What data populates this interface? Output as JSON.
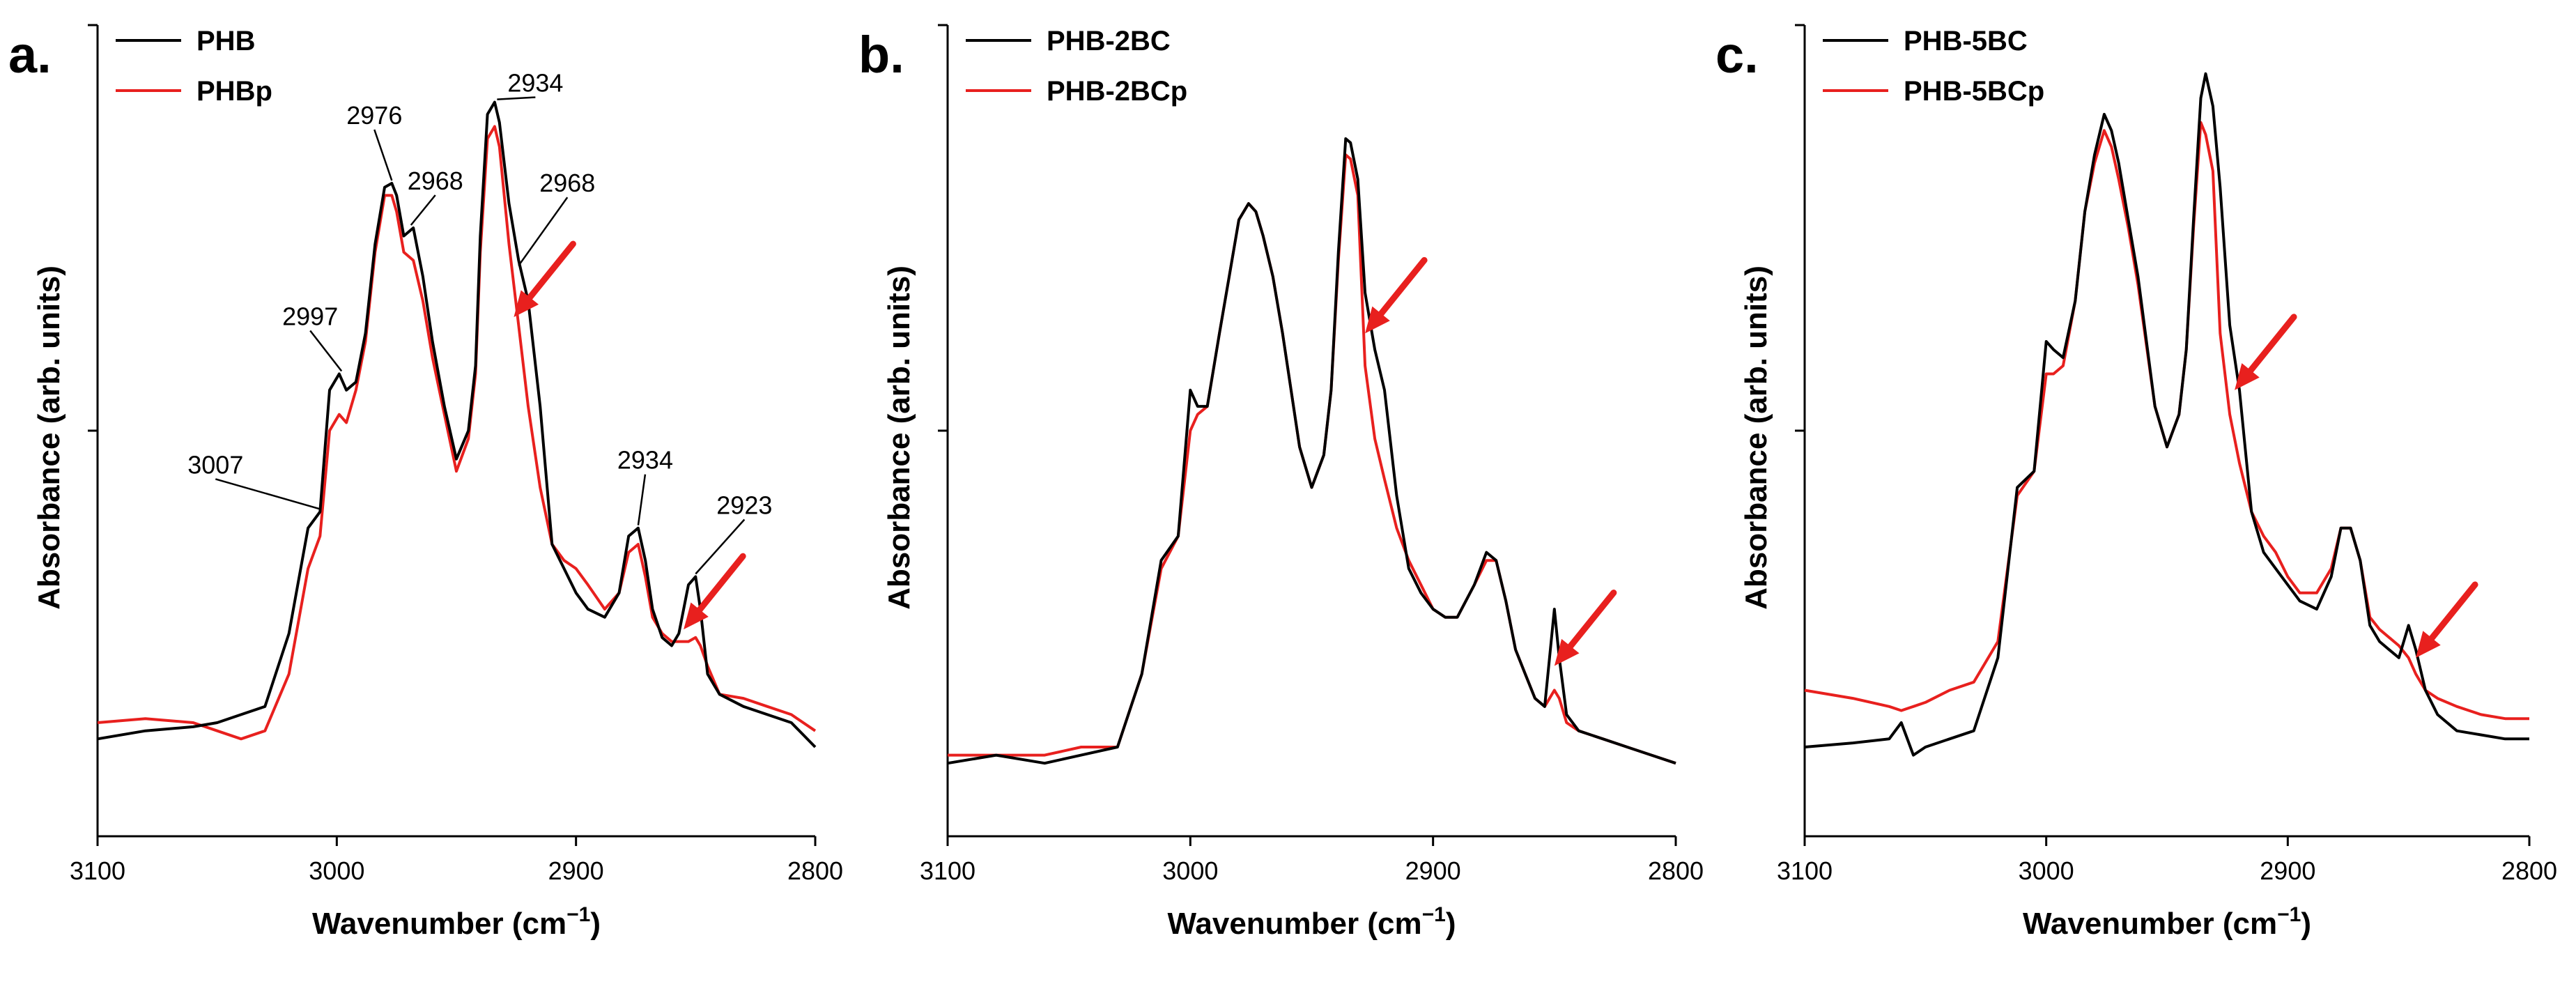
{
  "chart_data": [
    {
      "type": "line",
      "panel_label": "a.",
      "xlabel": "Wavenumber (cm",
      "xlabel_sup": "−1",
      "xlabel_close": ")",
      "ylabel": "Absorbance (arb. units)",
      "xlim": [
        3100,
        2800
      ],
      "ylim": [
        0,
        1
      ],
      "xticks": [
        3100,
        3000,
        2900,
        2800
      ],
      "xtick_labels": [
        "3100",
        "3000",
        "2900",
        "2800"
      ],
      "yticks": [
        0.5,
        1.0
      ],
      "legend_position": "top-left",
      "series": [
        {
          "name": "PHB",
          "color": "#000000",
          "x": [
            3100,
            3080,
            3060,
            3050,
            3040,
            3030,
            3020,
            3012,
            3007,
            3003,
            2999,
            2996,
            2992,
            2988,
            2984,
            2980,
            2977,
            2975,
            2972,
            2968,
            2964,
            2960,
            2955,
            2950,
            2945,
            2942,
            2940,
            2937,
            2934,
            2932,
            2928,
            2924,
            2920,
            2915,
            2910,
            2905,
            2900,
            2895,
            2888,
            2882,
            2878,
            2874,
            2871,
            2868,
            2864,
            2860,
            2857,
            2853,
            2850,
            2848,
            2845,
            2840,
            2830,
            2820,
            2810,
            2800
          ],
          "y": [
            0.12,
            0.13,
            0.135,
            0.14,
            0.15,
            0.16,
            0.25,
            0.38,
            0.4,
            0.55,
            0.57,
            0.55,
            0.56,
            0.62,
            0.73,
            0.8,
            0.805,
            0.79,
            0.74,
            0.75,
            0.69,
            0.61,
            0.53,
            0.465,
            0.5,
            0.58,
            0.74,
            0.89,
            0.905,
            0.88,
            0.78,
            0.71,
            0.66,
            0.53,
            0.36,
            0.33,
            0.3,
            0.28,
            0.27,
            0.3,
            0.37,
            0.38,
            0.34,
            0.28,
            0.245,
            0.235,
            0.25,
            0.31,
            0.32,
            0.28,
            0.2,
            0.175,
            0.16,
            0.15,
            0.14,
            0.11
          ]
        },
        {
          "name": "PHBp",
          "color": "#e8201e",
          "x": [
            3100,
            3080,
            3060,
            3050,
            3040,
            3030,
            3020,
            3012,
            3007,
            3003,
            2999,
            2996,
            2992,
            2988,
            2984,
            2980,
            2977,
            2975,
            2972,
            2968,
            2964,
            2960,
            2955,
            2950,
            2945,
            2942,
            2940,
            2937,
            2934,
            2932,
            2928,
            2924,
            2920,
            2915,
            2910,
            2905,
            2900,
            2895,
            2888,
            2882,
            2878,
            2874,
            2871,
            2868,
            2864,
            2860,
            2857,
            2853,
            2850,
            2848,
            2845,
            2840,
            2830,
            2820,
            2810,
            2800
          ],
          "y": [
            0.14,
            0.145,
            0.14,
            0.13,
            0.12,
            0.13,
            0.2,
            0.33,
            0.37,
            0.5,
            0.52,
            0.51,
            0.55,
            0.61,
            0.72,
            0.79,
            0.79,
            0.77,
            0.72,
            0.71,
            0.66,
            0.59,
            0.52,
            0.45,
            0.49,
            0.57,
            0.72,
            0.86,
            0.875,
            0.85,
            0.73,
            0.63,
            0.53,
            0.43,
            0.36,
            0.34,
            0.33,
            0.31,
            0.28,
            0.3,
            0.35,
            0.36,
            0.32,
            0.27,
            0.25,
            0.24,
            0.24,
            0.24,
            0.245,
            0.235,
            0.21,
            0.175,
            0.17,
            0.16,
            0.15,
            0.13
          ]
        }
      ],
      "annotations": [
        {
          "label": "3007",
          "x": 3007,
          "y": 0.4
        },
        {
          "label": "2997",
          "x": 2998,
          "y": 0.57
        },
        {
          "label": "2976",
          "x": 2977,
          "y": 0.805
        },
        {
          "label": "2968",
          "x": 2969,
          "y": 0.75
        },
        {
          "label": "2934",
          "x": 2933,
          "y": 0.905
        },
        {
          "label": "2968",
          "x": 2924,
          "y": 0.7
        },
        {
          "label": "2934",
          "x": 2874,
          "y": 0.38
        },
        {
          "label": "2923",
          "x": 2850,
          "y": 0.32
        }
      ],
      "arrows": [
        {
          "x": 2926,
          "y": 0.64
        },
        {
          "x": 2855,
          "y": 0.255
        }
      ]
    },
    {
      "type": "line",
      "panel_label": "b.",
      "xlabel": "Wavenumber (cm",
      "xlabel_sup": "−1",
      "xlabel_close": ")",
      "ylabel": "Absorbance (arb. units)",
      "xlim": [
        3100,
        2800
      ],
      "ylim": [
        0,
        1
      ],
      "xticks": [
        3100,
        3000,
        2900,
        2800
      ],
      "xtick_labels": [
        "3100",
        "3000",
        "2900",
        "2800"
      ],
      "yticks": [
        0.5,
        1.0
      ],
      "legend_position": "top-left",
      "series": [
        {
          "name": "PHB-2BC",
          "color": "#000000",
          "x": [
            3100,
            3080,
            3060,
            3045,
            3030,
            3020,
            3012,
            3005,
            3000,
            2997,
            2993,
            2988,
            2984,
            2980,
            2976,
            2973,
            2970,
            2966,
            2962,
            2955,
            2950,
            2945,
            2942,
            2939,
            2936,
            2934,
            2931,
            2928,
            2924,
            2920,
            2915,
            2910,
            2905,
            2900,
            2895,
            2890,
            2883,
            2878,
            2874,
            2870,
            2866,
            2862,
            2858,
            2854,
            2850,
            2848,
            2845,
            2840,
            2830,
            2820,
            2810,
            2800
          ],
          "y": [
            0.09,
            0.1,
            0.09,
            0.1,
            0.11,
            0.2,
            0.34,
            0.37,
            0.55,
            0.53,
            0.53,
            0.62,
            0.69,
            0.76,
            0.78,
            0.77,
            0.74,
            0.69,
            0.62,
            0.48,
            0.43,
            0.47,
            0.55,
            0.72,
            0.86,
            0.855,
            0.81,
            0.67,
            0.6,
            0.55,
            0.42,
            0.33,
            0.3,
            0.28,
            0.27,
            0.27,
            0.31,
            0.35,
            0.34,
            0.29,
            0.23,
            0.2,
            0.17,
            0.16,
            0.28,
            0.22,
            0.15,
            0.13,
            0.12,
            0.11,
            0.1,
            0.09
          ]
        },
        {
          "name": "PHB-2BCp",
          "color": "#e8201e",
          "x": [
            3100,
            3080,
            3060,
            3045,
            3030,
            3020,
            3012,
            3005,
            3000,
            2997,
            2993,
            2988,
            2984,
            2980,
            2976,
            2973,
            2970,
            2966,
            2962,
            2955,
            2950,
            2945,
            2942,
            2939,
            2936,
            2934,
            2931,
            2928,
            2924,
            2920,
            2915,
            2910,
            2905,
            2900,
            2895,
            2890,
            2883,
            2878,
            2874,
            2870,
            2866,
            2862,
            2858,
            2854,
            2850,
            2848,
            2845,
            2840,
            2830,
            2820,
            2810,
            2800
          ],
          "y": [
            0.1,
            0.1,
            0.1,
            0.11,
            0.11,
            0.2,
            0.33,
            0.37,
            0.5,
            0.52,
            0.53,
            0.62,
            0.69,
            0.76,
            0.78,
            0.77,
            0.74,
            0.69,
            0.62,
            0.48,
            0.43,
            0.47,
            0.55,
            0.71,
            0.84,
            0.835,
            0.79,
            0.58,
            0.49,
            0.44,
            0.38,
            0.34,
            0.31,
            0.28,
            0.27,
            0.27,
            0.31,
            0.34,
            0.34,
            0.29,
            0.23,
            0.2,
            0.17,
            0.16,
            0.18,
            0.17,
            0.14,
            0.13,
            0.12,
            0.11,
            0.1,
            0.09
          ]
        }
      ],
      "annotations": [],
      "arrows": [
        {
          "x": 2928,
          "y": 0.62
        },
        {
          "x": 2850,
          "y": 0.21
        }
      ]
    },
    {
      "type": "line",
      "panel_label": "c.",
      "xlabel": "Wavenumber (cm",
      "xlabel_sup": "−1",
      "xlabel_close": ")",
      "ylabel": "Absorbance (arb. units)",
      "xlim": [
        3100,
        2800
      ],
      "ylim": [
        0,
        1
      ],
      "xticks": [
        3100,
        3000,
        2900,
        2800
      ],
      "xtick_labels": [
        "3100",
        "3000",
        "2900",
        "2800"
      ],
      "yticks": [
        0.5,
        1.0
      ],
      "legend_position": "top-left",
      "series": [
        {
          "name": "PHB-5BC",
          "color": "#000000",
          "x": [
            3100,
            3080,
            3065,
            3060,
            3055,
            3050,
            3040,
            3030,
            3020,
            3012,
            3005,
            3000,
            2997,
            2993,
            2988,
            2984,
            2980,
            2976,
            2973,
            2970,
            2966,
            2962,
            2955,
            2950,
            2945,
            2942,
            2939,
            2936,
            2934,
            2931,
            2928,
            2924,
            2920,
            2915,
            2910,
            2905,
            2900,
            2895,
            2888,
            2882,
            2878,
            2874,
            2870,
            2866,
            2862,
            2858,
            2854,
            2850,
            2847,
            2843,
            2838,
            2830,
            2820,
            2810,
            2800
          ],
          "y": [
            0.11,
            0.115,
            0.12,
            0.14,
            0.1,
            0.11,
            0.12,
            0.13,
            0.22,
            0.43,
            0.45,
            0.61,
            0.6,
            0.59,
            0.66,
            0.77,
            0.84,
            0.89,
            0.87,
            0.83,
            0.76,
            0.69,
            0.53,
            0.48,
            0.52,
            0.6,
            0.76,
            0.91,
            0.94,
            0.9,
            0.8,
            0.63,
            0.55,
            0.4,
            0.35,
            0.33,
            0.31,
            0.29,
            0.28,
            0.32,
            0.38,
            0.38,
            0.34,
            0.26,
            0.24,
            0.23,
            0.22,
            0.26,
            0.23,
            0.18,
            0.15,
            0.13,
            0.125,
            0.12,
            0.12
          ]
        },
        {
          "name": "PHB-5BCp",
          "color": "#e8201e",
          "x": [
            3100,
            3080,
            3065,
            3060,
            3055,
            3050,
            3040,
            3030,
            3020,
            3012,
            3005,
            3000,
            2997,
            2993,
            2988,
            2984,
            2980,
            2976,
            2973,
            2970,
            2966,
            2962,
            2955,
            2950,
            2945,
            2942,
            2939,
            2936,
            2934,
            2931,
            2928,
            2924,
            2920,
            2915,
            2910,
            2905,
            2900,
            2895,
            2888,
            2882,
            2878,
            2874,
            2870,
            2866,
            2862,
            2858,
            2854,
            2850,
            2847,
            2843,
            2838,
            2830,
            2820,
            2810,
            2800
          ],
          "y": [
            0.18,
            0.17,
            0.16,
            0.155,
            0.16,
            0.165,
            0.18,
            0.19,
            0.24,
            0.42,
            0.45,
            0.57,
            0.57,
            0.58,
            0.66,
            0.77,
            0.83,
            0.87,
            0.85,
            0.81,
            0.75,
            0.68,
            0.53,
            0.48,
            0.52,
            0.6,
            0.75,
            0.88,
            0.865,
            0.82,
            0.62,
            0.52,
            0.46,
            0.4,
            0.37,
            0.35,
            0.32,
            0.3,
            0.3,
            0.33,
            0.38,
            0.38,
            0.34,
            0.27,
            0.255,
            0.245,
            0.235,
            0.22,
            0.2,
            0.18,
            0.17,
            0.16,
            0.15,
            0.145,
            0.145
          ]
        }
      ],
      "annotations": [],
      "arrows": [
        {
          "x": 2922,
          "y": 0.55
        },
        {
          "x": 2847,
          "y": 0.22
        }
      ]
    }
  ]
}
